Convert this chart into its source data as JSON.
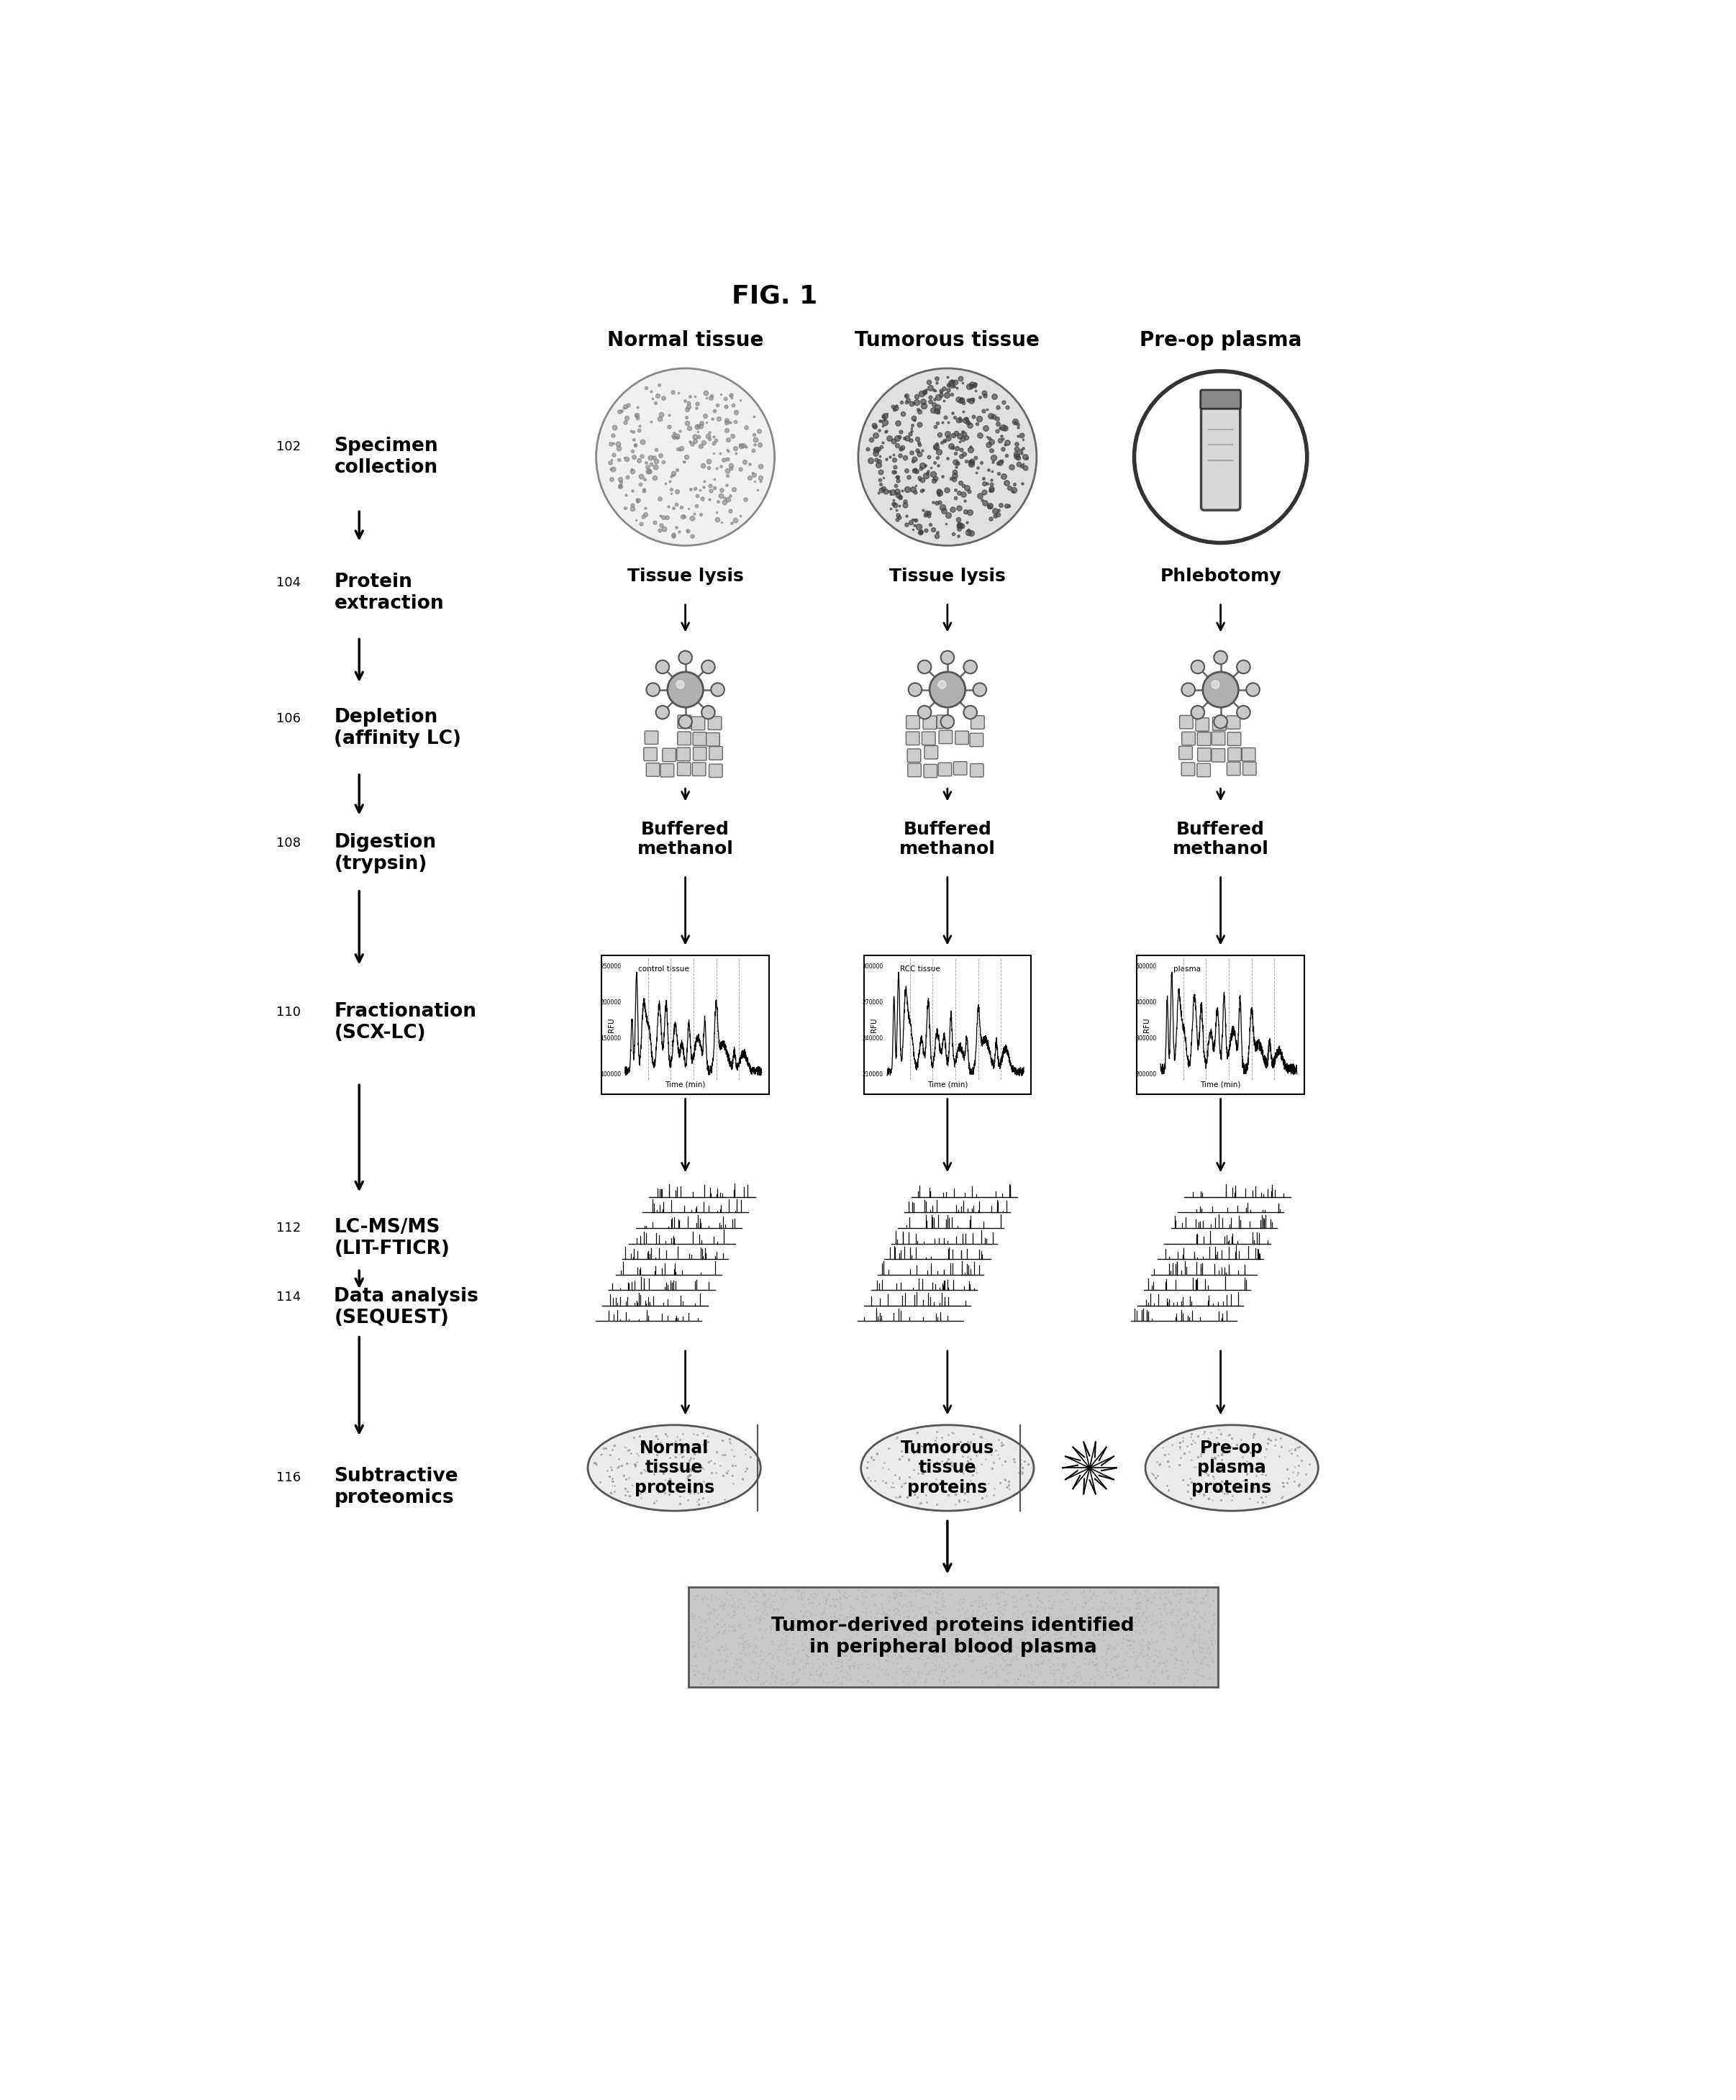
{
  "title": "FIG. 1",
  "col_headers": [
    "Normal tissue",
    "Tumorous tissue",
    "Pre-op plasma"
  ],
  "steps": [
    {
      "num": "102",
      "label": "Specimen\ncollection"
    },
    {
      "num": "104",
      "label": "Protein\nextraction"
    },
    {
      "num": "106",
      "label": "Depletion\n(affinity LC)"
    },
    {
      "num": "108",
      "label": "Digestion\n(trypsin)"
    },
    {
      "num": "110",
      "label": "Fractionation\n(SCX-LC)"
    },
    {
      "num": "112",
      "label": "LC-MS/MS\n(LIT-FTICR)"
    },
    {
      "num": "114",
      "label": "Data analysis\n(SEQUEST)"
    },
    {
      "num": "116",
      "label": "Subtractive\nproteomics"
    }
  ],
  "col_labels_row1": [
    "Tissue lysis",
    "Tissue lysis",
    "Phlebotomy"
  ],
  "col_labels_row2": [
    "Buffered\nmethanol",
    "Buffered\nmethanol",
    "Buffered\nmethanol"
  ],
  "chrom_labels": [
    "control tissue",
    "RCC tissue",
    "plasma"
  ],
  "bottom_box_label": "Tumor–derived proteins identified\nin peripheral blood plasma",
  "oval_labels": [
    "Normal\ntissue\nproteins",
    "Tumorous\ntissue\nproteins",
    "Pre-op\nplasma\nproteins"
  ],
  "bg_color": "#ffffff",
  "text_color": "#000000"
}
